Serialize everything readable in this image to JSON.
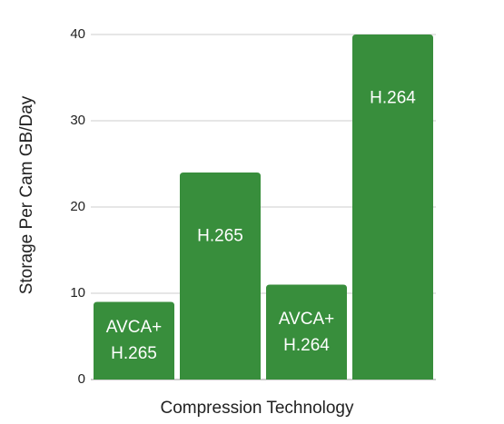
{
  "chart_data": {
    "type": "bar",
    "x_label": "Compression Technology",
    "y_label": "Storage Per Cam GB/Day",
    "categories": [
      "AVCA+ H.265",
      "H.265",
      "AVCA+ H.264",
      "H.264"
    ],
    "values": [
      9,
      24,
      11,
      40
    ],
    "color": "#388e3c",
    "ylim": [
      0,
      40
    ],
    "yticks": [
      0,
      10,
      20,
      30,
      40
    ],
    "grid": true
  }
}
